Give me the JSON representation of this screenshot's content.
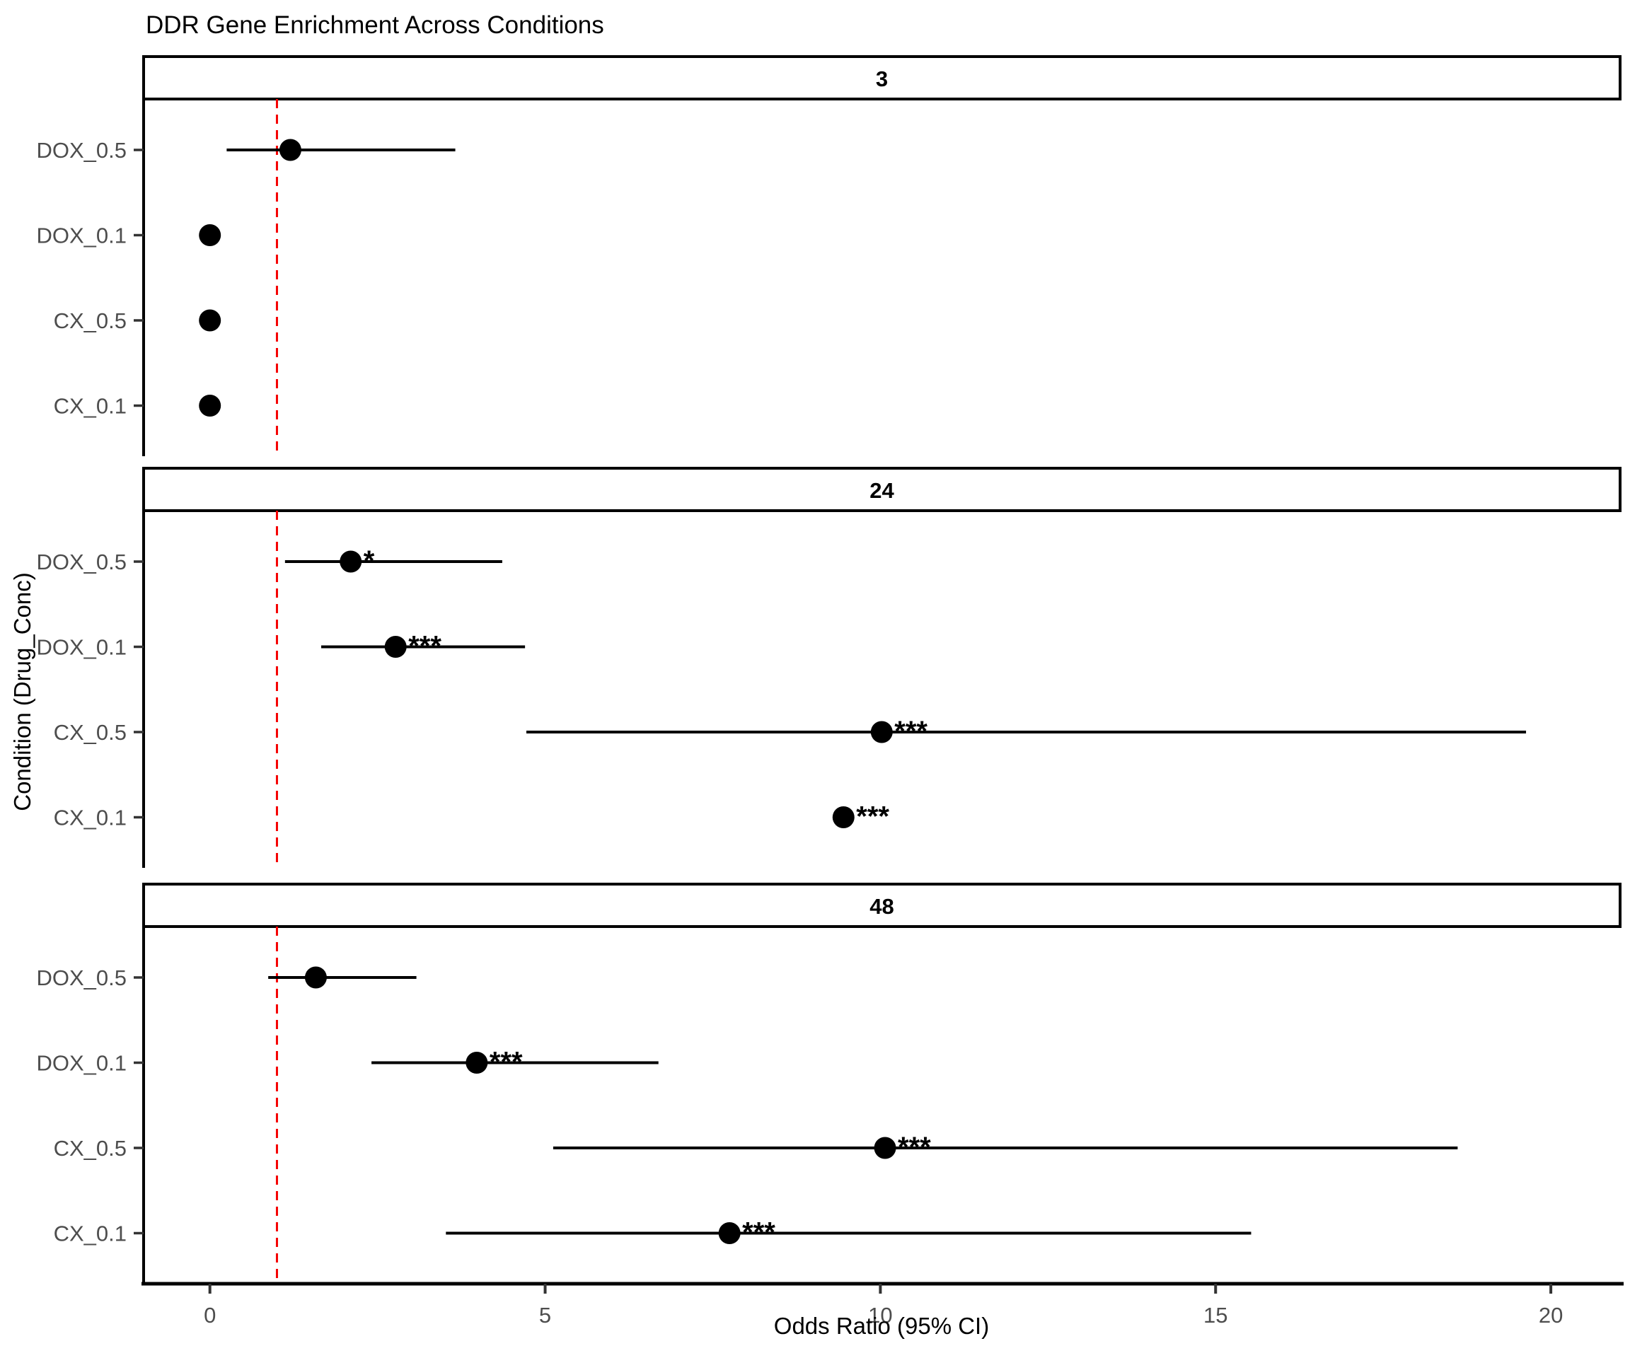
{
  "title": "DDR Gene Enrichment Across Conditions",
  "chart_data": {
    "type": "scatter",
    "subtype": "forest-plot-faceted",
    "title": "DDR Gene Enrichment Across Conditions",
    "xlabel": "Odds Ratio (95% CI)",
    "ylabel": "Condition (Drug_Conc)",
    "x_ticks": [
      0,
      5,
      10,
      15,
      20
    ],
    "xlim": [
      -1,
      21
    ],
    "grid": "off",
    "legend": "none",
    "reference_line": {
      "x": 1,
      "style": "dashed"
    },
    "categories_top_to_bottom": [
      "DOX_0.5",
      "DOX_0.1",
      "CX_0.5",
      "CX_0.1"
    ],
    "colors": {
      "point": "#000000",
      "ci_line": "#000000",
      "ref_line": "#F50000",
      "axis_text": "#4d4d4d",
      "axis_line": "#000000",
      "strip_border": "#000000",
      "strip_fill": "#ffffff"
    },
    "facets": [
      {
        "label": "3",
        "rows": [
          {
            "condition": "DOX_0.5",
            "or": 1.2,
            "ci_low": 0.25,
            "ci_high": 3.66,
            "sig": ""
          },
          {
            "condition": "DOX_0.1",
            "or": 0.0,
            "ci_low": null,
            "ci_high": null,
            "sig": ""
          },
          {
            "condition": "CX_0.5",
            "or": 0.0,
            "ci_low": null,
            "ci_high": null,
            "sig": ""
          },
          {
            "condition": "CX_0.1",
            "or": 0.0,
            "ci_low": null,
            "ci_high": null,
            "sig": ""
          }
        ]
      },
      {
        "label": "24",
        "rows": [
          {
            "condition": "DOX_0.5",
            "or": 2.1,
            "ci_low": 1.12,
            "ci_high": 4.36,
            "sig": "*"
          },
          {
            "condition": "DOX_0.1",
            "or": 2.77,
            "ci_low": 1.66,
            "ci_high": 4.7,
            "sig": "***"
          },
          {
            "condition": "CX_0.5",
            "or": 10.02,
            "ci_low": 4.72,
            "ci_high": 19.63,
            "sig": "***"
          },
          {
            "condition": "CX_0.1",
            "or": 9.45,
            "ci_low": null,
            "ci_high": null,
            "sig": "***"
          }
        ]
      },
      {
        "label": "48",
        "rows": [
          {
            "condition": "DOX_0.5",
            "or": 1.58,
            "ci_low": 0.87,
            "ci_high": 3.08,
            "sig": ""
          },
          {
            "condition": "DOX_0.1",
            "or": 3.98,
            "ci_low": 2.41,
            "ci_high": 6.69,
            "sig": "***"
          },
          {
            "condition": "CX_0.5",
            "or": 10.07,
            "ci_low": 5.12,
            "ci_high": 18.61,
            "sig": "***"
          },
          {
            "condition": "CX_0.1",
            "or": 7.75,
            "ci_low": 3.52,
            "ci_high": 15.53,
            "sig": "***"
          }
        ]
      }
    ]
  }
}
